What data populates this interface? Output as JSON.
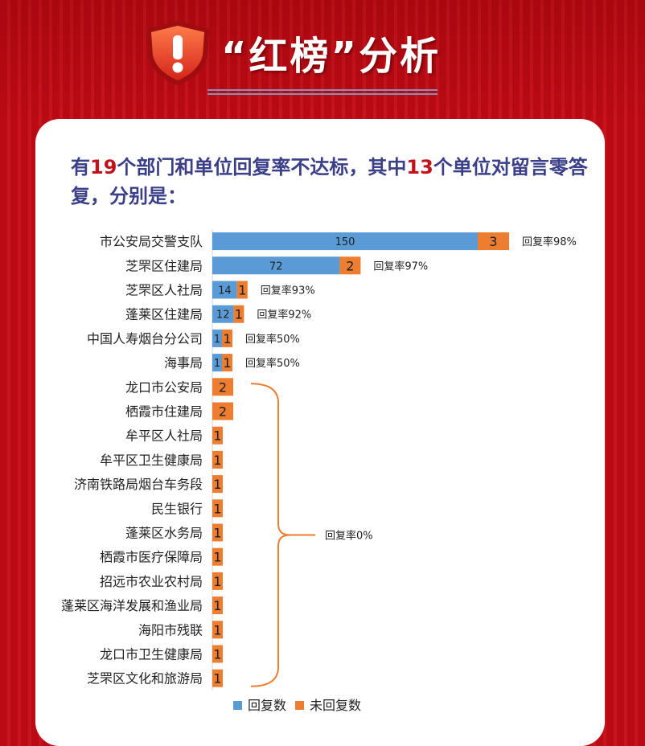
{
  "header": {
    "title": "“红榜”分析",
    "icon": "warning-shield-icon",
    "color_bg": "#b90a15"
  },
  "headline": {
    "part1": "有",
    "num1": "19",
    "part2": "个部门和单位回复率不达标，其中",
    "num2": "13",
    "part3": "个单位对留言零答复，分别是："
  },
  "chart_data": {
    "type": "bar",
    "orientation": "horizontal",
    "stacked": true,
    "categories": [
      "市公安局交警支队",
      "芝罘区住建局",
      "芝罘区人社局",
      "蓬莱区住建局",
      "中国人寿烟台分公司",
      "海事局",
      "龙口市公安局",
      "栖霞市住建局",
      "牟平区人社局",
      "牟平区卫生健康局",
      "济南铁路局烟台车务段",
      "民生银行",
      "蓬莱区水务局",
      "栖霞市医疗保障局",
      "招远市农业农村局",
      "蓬莱区海洋发展和渔业局",
      "海阳市残联",
      "龙口市卫生健康局",
      "芝罘区文化和旅游局"
    ],
    "series": [
      {
        "name": "回复数",
        "color": "#5b9bd5",
        "values": [
          150,
          72,
          14,
          12,
          1,
          1,
          0,
          0,
          0,
          0,
          0,
          0,
          0,
          0,
          0,
          0,
          0,
          0,
          0
        ]
      },
      {
        "name": "未回复数",
        "color": "#ed7d31",
        "values": [
          3,
          2,
          1,
          1,
          1,
          1,
          2,
          2,
          1,
          1,
          1,
          1,
          1,
          1,
          1,
          1,
          1,
          1,
          1
        ]
      }
    ],
    "rate_labels": [
      "回复率98%",
      "回复率97%",
      "回复率93%",
      "回复率92%",
      "回复率50%",
      "回复率50%"
    ],
    "group_label": "回复率0%",
    "legend_position": "bottom",
    "grid": false
  }
}
